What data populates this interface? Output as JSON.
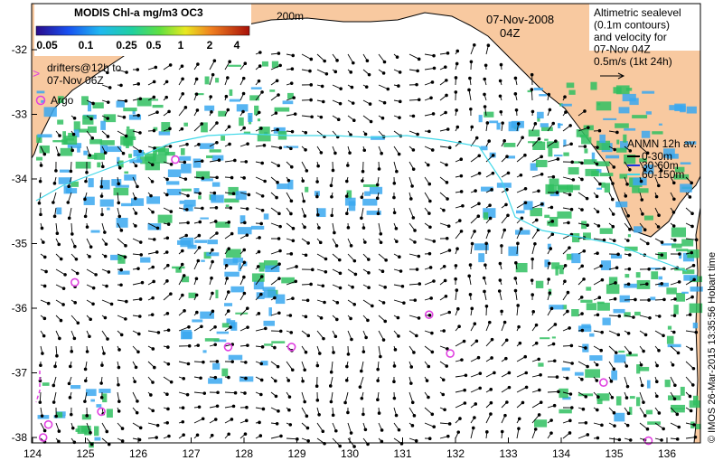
{
  "colorbar": {
    "title": "MODIS Chl-a mg/m3 OC3",
    "ticks": [
      "0.05",
      "0.1",
      "0.25",
      "0.5",
      "1",
      "2",
      "4"
    ]
  },
  "isobath_label": "200m",
  "date": "07-Nov-2008",
  "hour": "04Z",
  "altimetry_note": [
    "Altimetric sealevel",
    "(0.1m contours)",
    "and velocity for",
    "07-Nov 04Z",
    "0.5m/s (1kt 24h)"
  ],
  "drifters_note": [
    "drifters@12h to",
    "07-Nov 06Z"
  ],
  "argo_label": "Argo",
  "anmn": {
    "title": "ANMN 12h av.",
    "depths": [
      "0-30m",
      "30-60m",
      "60-150m"
    ]
  },
  "credit": "© IMOS 26-Mar-2015 13:35:56 Hobart time",
  "axes": {
    "x_ticks": [
      "124",
      "125",
      "126",
      "127",
      "128",
      "129",
      "130",
      "131",
      "132",
      "133",
      "134",
      "135",
      "136"
    ],
    "y_ticks": [
      "-32",
      "-33",
      "-34",
      "-35",
      "-36",
      "-37",
      "-38"
    ]
  },
  "colors": {
    "land": "#f8c9a0",
    "argo": "#e040e0",
    "isobath": "#40d8e8",
    "chl_low": "#3aa8f0",
    "chl_high": "#30c060"
  },
  "argo_floats": [
    {
      "lon": 126.7,
      "lat": -33.7
    },
    {
      "lon": 124.8,
      "lat": -35.6
    },
    {
      "lon": 127.7,
      "lat": -36.6
    },
    {
      "lon": 128.9,
      "lat": -36.6
    },
    {
      "lon": 131.5,
      "lat": -36.1
    },
    {
      "lon": 131.9,
      "lat": -36.7
    },
    {
      "lon": 125.3,
      "lat": -37.6
    },
    {
      "lon": 124.3,
      "lat": -37.8
    },
    {
      "lon": 124.2,
      "lat": -38.0
    },
    {
      "lon": 134.8,
      "lat": -37.15
    },
    {
      "lon": 135.65,
      "lat": -38.05
    }
  ]
}
